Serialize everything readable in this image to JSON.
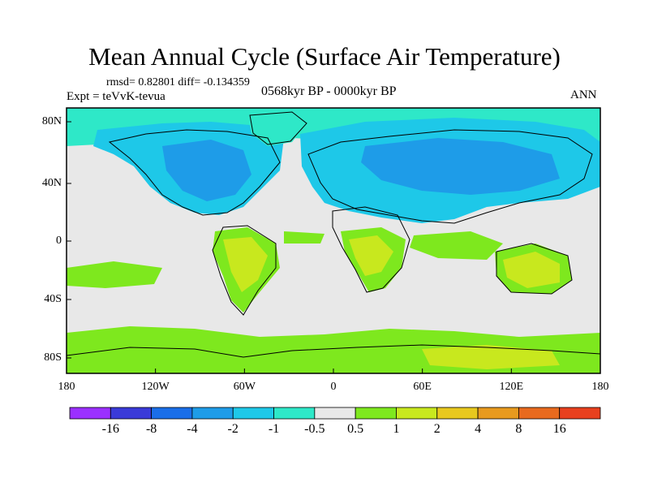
{
  "title": "Mean Annual Cycle (Surface Air Temperature)",
  "stats_text": "rmsd= 0.82801 diff= -0.134359",
  "expt_text": "Expt = teVvK-tevua",
  "period_text": "0568kyr BP - 0000kyr BP",
  "season_label": "ANN",
  "lat_labels": [
    "80N",
    "40N",
    "0",
    "40S",
    "80S"
  ],
  "lon_labels": [
    "180",
    "120W",
    "60W",
    "0",
    "60E",
    "120E",
    "180"
  ],
  "colorbar": {
    "colors": [
      "#9b30ff",
      "#3a3ad8",
      "#1a6ee8",
      "#1e9ce8",
      "#1ec8e8",
      "#2ee8c8",
      "#e8e8e8",
      "#7ee81e",
      "#c8e81e",
      "#e8c81e",
      "#e89a1e",
      "#e86a1e",
      "#e8401e"
    ],
    "labels": [
      "-16",
      "-8",
      "-4",
      "-2",
      "-1",
      "-0.5",
      "0.5",
      "1",
      "2",
      "4",
      "8",
      "16"
    ]
  },
  "map_colors": {
    "neutral": "#e8e8e8",
    "cool_light": "#2ee8c8",
    "cool_mid": "#1ec8e8",
    "cool_dark": "#1e9ce8",
    "warm_light": "#7ee81e",
    "warm_mid": "#c8e81e",
    "coast": "#000000"
  }
}
